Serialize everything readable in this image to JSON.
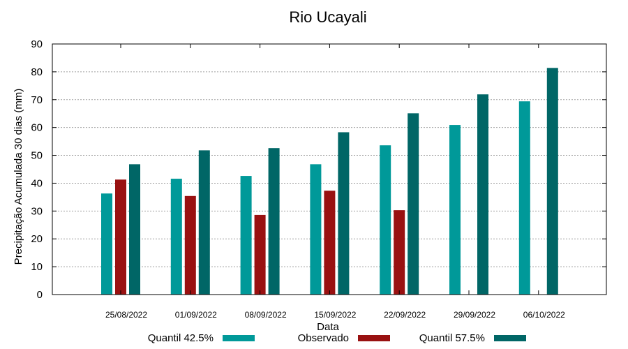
{
  "chart_data": {
    "type": "bar",
    "title": "Rio Ucayali",
    "xlabel": "Data",
    "ylabel": "Precipitação Acumulada 30 dias (mm)",
    "ylim": [
      0,
      90
    ],
    "yticks": [
      0,
      10,
      20,
      30,
      40,
      50,
      60,
      70,
      80,
      90
    ],
    "grid": true,
    "legend_position": "bottom",
    "categories": [
      "25/08/2022",
      "01/09/2022",
      "08/09/2022",
      "15/09/2022",
      "22/09/2022",
      "29/09/2022",
      "06/10/2022"
    ],
    "series": [
      {
        "name": "Quantil 42.5%",
        "color": "#009999",
        "values": [
          36.3,
          41.6,
          42.6,
          46.8,
          53.6,
          60.9,
          69.4
        ]
      },
      {
        "name": "Observado",
        "color": "#991111",
        "values": [
          41.3,
          35.4,
          28.6,
          37.3,
          30.3,
          null,
          null
        ]
      },
      {
        "name": "Quantil 57.5%",
        "color": "#006666",
        "values": [
          46.8,
          51.8,
          52.6,
          58.3,
          65.1,
          71.9,
          81.4
        ]
      }
    ]
  }
}
